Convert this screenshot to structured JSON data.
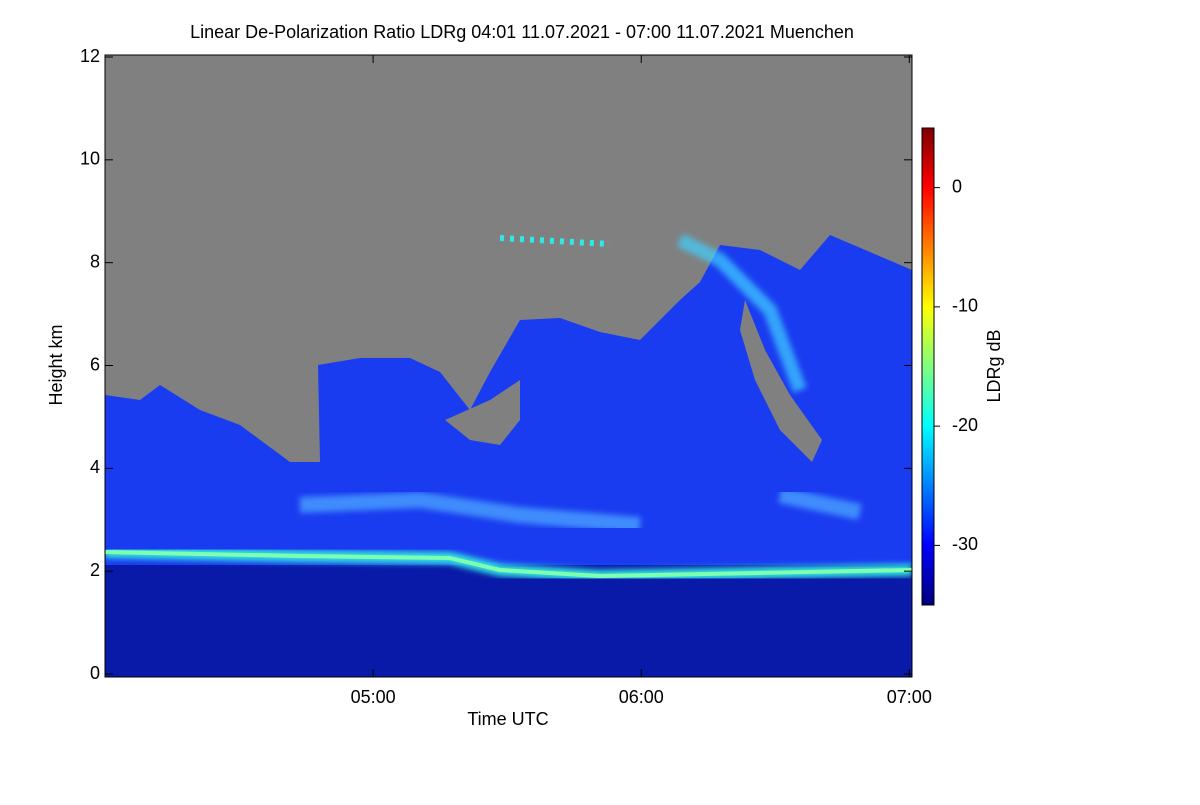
{
  "chart_data": {
    "type": "heatmap",
    "title": "Linear De-Polarization Ratio LDRg   04:01 11.07.2021 - 07:00 11.07.2021 Muenchen",
    "x_label": "Time UTC",
    "y_label": "Height km",
    "xlim": [
      4,
      7.01
    ],
    "xticks": [
      {
        "value": 5,
        "label": "05:00"
      },
      {
        "value": 6,
        "label": "06:00"
      },
      {
        "value": 7,
        "label": "07:00"
      }
    ],
    "ylim": [
      0,
      12
    ],
    "yticks": [
      0,
      2,
      4,
      6,
      8,
      10,
      12
    ],
    "colorbar": {
      "label": "LDRg dB",
      "zlim": [
        -35,
        5
      ],
      "zticks": [
        0,
        -10,
        -20,
        -30
      ],
      "colormap": "jet"
    }
  }
}
